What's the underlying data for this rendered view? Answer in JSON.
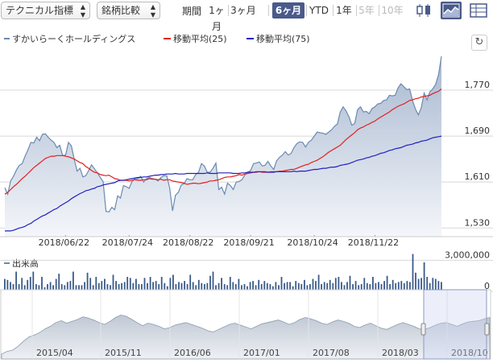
{
  "toolbar": {
    "indicator_select": "テクニカル指標",
    "compare_select": "銘柄比較",
    "period_label": "期間",
    "periods": [
      {
        "label": "1ヶ月",
        "state": "normal"
      },
      {
        "label": "3ヶ月",
        "state": "normal"
      },
      {
        "label": "6ヶ月",
        "state": "active"
      },
      {
        "label": "YTD",
        "state": "normal"
      },
      {
        "label": "1年",
        "state": "normal"
      },
      {
        "label": "5年",
        "state": "disabled"
      },
      {
        "label": "10年",
        "state": "disabled"
      }
    ],
    "icons": [
      "candlestick-icon",
      "area-chart-icon",
      "table-icon"
    ],
    "accent_color": "#4a5a8a"
  },
  "chart_data": [
    {
      "type": "area",
      "legend": [
        {
          "name": "すかいらーくホールディングス",
          "color": "#6a8ab0"
        },
        {
          "name": "移動平均(25)",
          "color": "#e02020"
        },
        {
          "name": "移動平均(75)",
          "color": "#2020c0"
        }
      ],
      "x_ticks": [
        "2018/06/22",
        "2018/07/24",
        "2018/08/22",
        "2018/09/21",
        "2018/10/24",
        "2018/11/22"
      ],
      "y_ticks": [
        "1,770",
        "1,690",
        "1,610",
        "1,530"
      ],
      "ylim": [
        1515,
        1840
      ],
      "grid": true,
      "legend_position": "top-left",
      "series": [
        {
          "name": "すかいらーくホールディングス",
          "values": [
            1600,
            1589,
            1612,
            1620,
            1631,
            1639,
            1642,
            1655,
            1666,
            1679,
            1678,
            1688,
            1682,
            1693,
            1694,
            1688,
            1683,
            1679,
            1670,
            1674,
            1656,
            1657,
            1679,
            1673,
            1650,
            1629,
            1634,
            1619,
            1621,
            1630,
            1640,
            1633,
            1626,
            1618,
            1611,
            1559,
            1558,
            1566,
            1562,
            1586,
            1582,
            1604,
            1602,
            1599,
            1611,
            1616,
            1616,
            1620,
            1610,
            1616,
            1618,
            1616,
            1615,
            1612,
            1618,
            1621,
            1621,
            1600,
            1560,
            1587,
            1592,
            1605,
            1607,
            1616,
            1614,
            1614,
            1623,
            1627,
            1642,
            1638,
            1627,
            1627,
            1634,
            1643,
            1597,
            1601,
            1589,
            1608,
            1604,
            1597,
            1610,
            1611,
            1614,
            1622,
            1627,
            1630,
            1642,
            1643,
            1645,
            1638,
            1639,
            1646,
            1638,
            1632,
            1647,
            1653,
            1657,
            1663,
            1657,
            1660,
            1670,
            1677,
            1680,
            1679,
            1671,
            1679,
            1683,
            1690,
            1697,
            1696,
            1695,
            1693,
            1697,
            1701,
            1707,
            1711,
            1732,
            1741,
            1734,
            1724,
            1709,
            1712,
            1736,
            1741,
            1732,
            1733,
            1729,
            1738,
            1741,
            1746,
            1747,
            1752,
            1753,
            1761,
            1760,
            1761,
            1774,
            1781,
            1776,
            1771,
            1772,
            1752,
            1737,
            1727,
            1739,
            1765,
            1753,
            1767,
            1772,
            1780,
            1797,
            1829
          ]
        },
        {
          "name": "移動平均(25)",
          "values": [
            1589,
            1592,
            1597,
            1602,
            1606,
            1611,
            1616,
            1620,
            1625,
            1630,
            1635,
            1639,
            1643,
            1647,
            1651,
            1653,
            1655,
            1655,
            1656,
            1656,
            1656,
            1655,
            1654,
            1652,
            1650,
            1647,
            1644,
            1642,
            1637,
            1634,
            1630,
            1627,
            1626,
            1623,
            1622,
            1621,
            1622,
            1619,
            1616,
            1615,
            1613,
            1613,
            1613,
            1612,
            1613,
            1614,
            1613,
            1613,
            1614,
            1614,
            1616,
            1615,
            1615,
            1614,
            1615,
            1613,
            1614,
            1614,
            1612,
            1611,
            1610,
            1609,
            1608,
            1606,
            1607,
            1608,
            1608,
            1607,
            1608,
            1609,
            1610,
            1612,
            1612,
            1613,
            1614,
            1616,
            1618,
            1619,
            1619,
            1620,
            1621,
            1623,
            1622,
            1624,
            1625,
            1626,
            1627,
            1627,
            1628,
            1627,
            1627,
            1627,
            1628,
            1628,
            1628,
            1629,
            1629,
            1630,
            1631,
            1632,
            1632,
            1634,
            1636,
            1638,
            1640,
            1641,
            1644,
            1646,
            1648,
            1651,
            1654,
            1658,
            1662,
            1665,
            1668,
            1671,
            1674,
            1679,
            1684,
            1688,
            1692,
            1696,
            1701,
            1704,
            1706,
            1709,
            1711,
            1714,
            1716,
            1720,
            1723,
            1726,
            1729,
            1732,
            1736,
            1739,
            1742,
            1744,
            1746,
            1749,
            1752,
            1753,
            1755,
            1756,
            1758,
            1759,
            1760,
            1761,
            1764,
            1766,
            1768,
            1772
          ]
        },
        {
          "name": "移動平均(75)",
          "values": [
            1525,
            1525,
            1525,
            1526,
            1528,
            1530,
            1531,
            1533,
            1536,
            1538,
            1542,
            1545,
            1548,
            1551,
            1553,
            1556,
            1559,
            1562,
            1564,
            1568,
            1571,
            1574,
            1577,
            1581,
            1584,
            1587,
            1590,
            1592,
            1595,
            1596,
            1598,
            1599,
            1602,
            1603,
            1605,
            1606,
            1607,
            1608,
            1609,
            1612,
            1613,
            1613,
            1614,
            1615,
            1616,
            1617,
            1618,
            1618,
            1619,
            1619,
            1620,
            1621,
            1622,
            1622,
            1623,
            1623,
            1624,
            1624,
            1624,
            1625,
            1624,
            1624,
            1624,
            1625,
            1625,
            1625,
            1625,
            1625,
            1625,
            1625,
            1626,
            1625,
            1625,
            1625,
            1626,
            1626,
            1626,
            1626,
            1626,
            1625,
            1625,
            1625,
            1626,
            1626,
            1627,
            1627,
            1627,
            1628,
            1628,
            1628,
            1628,
            1627,
            1627,
            1627,
            1628,
            1628,
            1628,
            1628,
            1628,
            1628,
            1629,
            1628,
            1629,
            1629,
            1629,
            1630,
            1631,
            1632,
            1632,
            1633,
            1634,
            1634,
            1635,
            1636,
            1636,
            1637,
            1639,
            1640,
            1641,
            1642,
            1644,
            1646,
            1648,
            1649,
            1650,
            1652,
            1653,
            1655,
            1656,
            1658,
            1660,
            1661,
            1663,
            1665,
            1666,
            1668,
            1669,
            1670,
            1672,
            1674,
            1675,
            1676,
            1678,
            1679,
            1681,
            1682,
            1683,
            1685,
            1687,
            1688,
            1689,
            1690
          ]
        }
      ]
    },
    {
      "type": "bar",
      "label": "出来高",
      "y_ticks": [
        "3,000,000",
        "0"
      ],
      "ylim": [
        0,
        3650000
      ],
      "series": [
        {
          "name": "出来高",
          "values": [
            1200000,
            1100000,
            900000,
            700000,
            1900000,
            700000,
            1300000,
            600000,
            1100000,
            1400000,
            1900000,
            700000,
            600000,
            1400000,
            400000,
            700000,
            900000,
            600000,
            1200000,
            1700000,
            700000,
            600000,
            900000,
            1000000,
            1900000,
            600000,
            600000,
            600000,
            900000,
            1800000,
            1300000,
            600000,
            1400000,
            800000,
            1000000,
            1200000,
            700000,
            600000,
            1600000,
            1000000,
            700000,
            800000,
            900000,
            1400000,
            1300000,
            800000,
            1200000,
            700000,
            700000,
            1300000,
            800000,
            1400000,
            900000,
            1000000,
            700000,
            1400000,
            800000,
            500000,
            1300000,
            1600000,
            700000,
            900000,
            800000,
            1000000,
            700000,
            1600000,
            900000,
            600000,
            1100000,
            800000,
            700000,
            800000,
            1500000,
            1900000,
            600000,
            800000,
            1300000,
            700000,
            600000,
            1400000,
            900000,
            700000,
            1200000,
            600000,
            700000,
            500000,
            900000,
            1000000,
            600000,
            1100000,
            700000,
            1000000,
            800000,
            700000,
            500000,
            900000,
            600000,
            1400000,
            800000,
            900000,
            900000,
            500000,
            1000000,
            800000,
            700000,
            1100000,
            600000,
            700000,
            1200000,
            1000000,
            1600000,
            700000,
            900000,
            800000,
            1100000,
            800000,
            1300000,
            1400000,
            900000,
            600000,
            900000,
            1500000,
            700000,
            1000000,
            600000,
            700000,
            1300000,
            800000,
            700000,
            1400000,
            800000,
            900000,
            700000,
            1000000,
            1500000,
            700000,
            1100000,
            800000,
            900000,
            1000000,
            800000,
            1000000,
            900000,
            3600000,
            1800000,
            1200000,
            1300000,
            2800000,
            1400000,
            800000,
            1300000,
            1200000,
            1000000,
            900000
          ]
        }
      ]
    },
    {
      "type": "area",
      "label": "navigator",
      "x_ticks": [
        "2015/04",
        "2015/11",
        "2016/06",
        "2017/01",
        "2017/08",
        "2018/03",
        "2018/10"
      ],
      "ylim": [
        0,
        100
      ],
      "series": [
        {
          "name": "navigator",
          "values": [
            8,
            12,
            14,
            20,
            28,
            35,
            38,
            42,
            48,
            52,
            58,
            61,
            57,
            60,
            63,
            67,
            65,
            62,
            58,
            55,
            60,
            66,
            70,
            68,
            63,
            58,
            53,
            57,
            55,
            52,
            48,
            50,
            54,
            56,
            58,
            55,
            52,
            49,
            45,
            43,
            47,
            51,
            55,
            57,
            54,
            51,
            48,
            52,
            56,
            58,
            60,
            62,
            59,
            55,
            58,
            63,
            66,
            64,
            61,
            57,
            55,
            59,
            62,
            60,
            57,
            52,
            50,
            54,
            57,
            53,
            49,
            47,
            51,
            55,
            58,
            55,
            52,
            48,
            47,
            50,
            54,
            57,
            58,
            55,
            52,
            56,
            59,
            60,
            61,
            64,
            66
          ]
        }
      ]
    }
  ]
}
